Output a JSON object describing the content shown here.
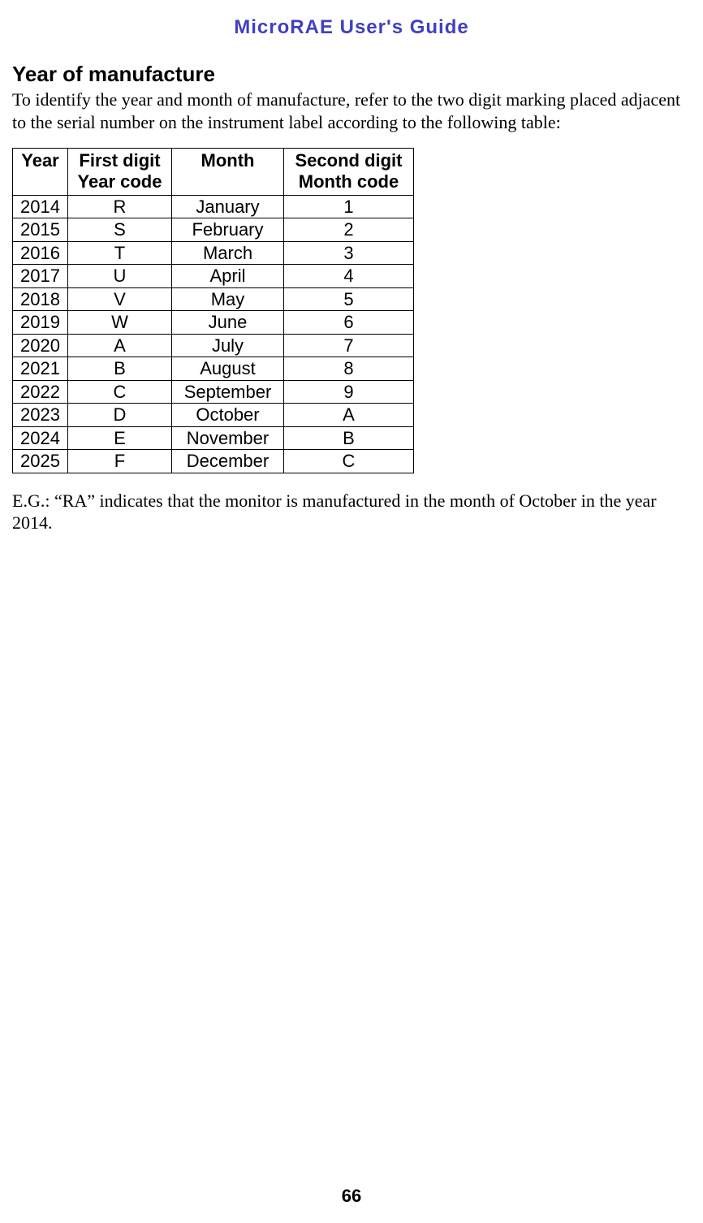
{
  "doc_title": "MicroRAE User's Guide",
  "section_heading": "Year of manufacture",
  "intro_text": "To identify the year and month of manufacture, refer to the two digit marking placed adjacent to the serial number on the instrument label according to the following table:",
  "table": {
    "headers": {
      "year": "Year",
      "year_code_l1": "First digit",
      "year_code_l2": "Year code",
      "month": "Month",
      "month_code_l1": "Second digit",
      "month_code_l2": "Month code"
    },
    "rows": [
      {
        "year": "2014",
        "ycode": "R",
        "month": "January",
        "mcode": "1"
      },
      {
        "year": "2015",
        "ycode": "S",
        "month": "February",
        "mcode": "2"
      },
      {
        "year": "2016",
        "ycode": "T",
        "month": "March",
        "mcode": "3"
      },
      {
        "year": "2017",
        "ycode": "U",
        "month": "April",
        "mcode": "4"
      },
      {
        "year": "2018",
        "ycode": "V",
        "month": "May",
        "mcode": "5"
      },
      {
        "year": "2019",
        "ycode": "W",
        "month": "June",
        "mcode": "6"
      },
      {
        "year": "2020",
        "ycode": "A",
        "month": "July",
        "mcode": "7"
      },
      {
        "year": "2021",
        "ycode": "B",
        "month": "August",
        "mcode": "8"
      },
      {
        "year": "2022",
        "ycode": "C",
        "month": "September",
        "mcode": "9"
      },
      {
        "year": "2023",
        "ycode": "D",
        "month": "October",
        "mcode": "A"
      },
      {
        "year": "2024",
        "ycode": "E",
        "month": "November",
        "mcode": "B"
      },
      {
        "year": "2025",
        "ycode": "F",
        "month": "December",
        "mcode": "C"
      }
    ]
  },
  "example_text": "E.G.: “RA” indicates that the monitor is manufactured in the month of October in the year 2014.",
  "page_number": "66"
}
